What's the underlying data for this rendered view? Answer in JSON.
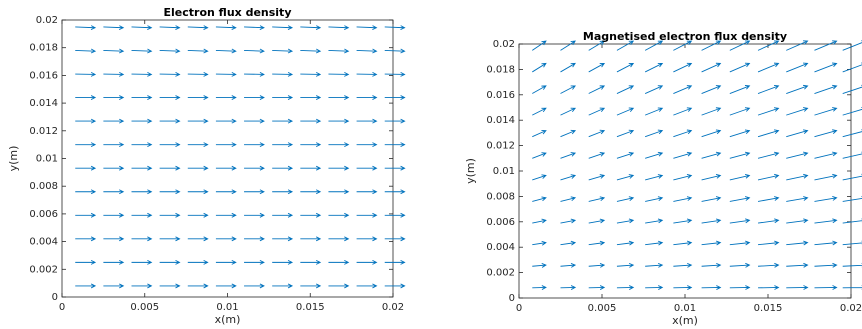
{
  "chart_data": [
    {
      "type": "quiver",
      "title": "Electron flux density",
      "xlabel": "x(m)",
      "ylabel": "y(m)",
      "color": "#0072bd",
      "xlim": [
        0,
        0.02
      ],
      "ylim": [
        0,
        0.02
      ],
      "xticks": [
        0,
        0.005,
        0.01,
        0.015,
        0.02
      ],
      "yticks": [
        0,
        0.002,
        0.004,
        0.006,
        0.008,
        0.01,
        0.012,
        0.014,
        0.016,
        0.018,
        0.02
      ],
      "x": [
        0.0008,
        0.0025,
        0.0042,
        0.0059,
        0.0076,
        0.0093,
        0.011,
        0.0127,
        0.0144,
        0.0161,
        0.0178,
        0.0195
      ],
      "y": [
        0.0008,
        0.0025,
        0.0042,
        0.0059,
        0.0076,
        0.0093,
        0.011,
        0.0127,
        0.0144,
        0.0161,
        0.0178,
        0.0195
      ],
      "u": [
        [
          0.0012,
          0.0012,
          0.0012,
          0.0012,
          0.0012,
          0.0012,
          0.0012,
          0.0012,
          0.0012,
          0.0012,
          0.0012,
          0.0012
        ],
        [
          0.0012,
          0.0012,
          0.0012,
          0.0012,
          0.0012,
          0.0012,
          0.0012,
          0.0012,
          0.0012,
          0.0012,
          0.0012,
          0.0012
        ],
        [
          0.0012,
          0.0012,
          0.0012,
          0.0012,
          0.0012,
          0.0012,
          0.0012,
          0.0012,
          0.0012,
          0.0012,
          0.0012,
          0.0012
        ],
        [
          0.0012,
          0.0012,
          0.0012,
          0.0012,
          0.0012,
          0.0012,
          0.0012,
          0.0012,
          0.0012,
          0.0012,
          0.0012,
          0.0012
        ],
        [
          0.0012,
          0.0012,
          0.0012,
          0.0012,
          0.0012,
          0.0012,
          0.0012,
          0.0012,
          0.0012,
          0.0012,
          0.0012,
          0.0012
        ],
        [
          0.0012,
          0.0012,
          0.0012,
          0.0012,
          0.0012,
          0.0012,
          0.0012,
          0.0012,
          0.0012,
          0.0012,
          0.0012,
          0.0012
        ],
        [
          0.0012,
          0.0012,
          0.0012,
          0.0012,
          0.0012,
          0.0012,
          0.0012,
          0.0012,
          0.0012,
          0.0012,
          0.0012,
          0.0012
        ],
        [
          0.0012,
          0.0012,
          0.0012,
          0.0012,
          0.0012,
          0.0012,
          0.0012,
          0.0012,
          0.0012,
          0.0012,
          0.0012,
          0.0012
        ],
        [
          0.0012,
          0.0012,
          0.0012,
          0.0012,
          0.0012,
          0.0012,
          0.0012,
          0.0012,
          0.0012,
          0.0012,
          0.0012,
          0.0012
        ],
        [
          0.0012,
          0.0012,
          0.0012,
          0.0012,
          0.0012,
          0.0012,
          0.0012,
          0.0012,
          0.0012,
          0.0012,
          0.0012,
          0.0012
        ],
        [
          0.0012,
          0.0012,
          0.0012,
          0.0012,
          0.0012,
          0.0012,
          0.0012,
          0.0012,
          0.0012,
          0.0012,
          0.0012,
          0.0012
        ],
        [
          0.0012,
          0.0012,
          0.0012,
          0.0012,
          0.0012,
          0.0012,
          0.0012,
          0.0012,
          0.0012,
          0.0012,
          0.0012,
          0.0012
        ]
      ],
      "v": [
        [
          0,
          0,
          0,
          0,
          0,
          0,
          0,
          0,
          0,
          0,
          0,
          0
        ],
        [
          0,
          0,
          0,
          0,
          0,
          0,
          0,
          0,
          0,
          0,
          0,
          0
        ],
        [
          0,
          0,
          0,
          0,
          0,
          0,
          0,
          0,
          0,
          0,
          0,
          0
        ],
        [
          0,
          0,
          0,
          0,
          0,
          0,
          0,
          0,
          0,
          0,
          0,
          0
        ],
        [
          0,
          0,
          0,
          0,
          0,
          0,
          0,
          0,
          0,
          0,
          0,
          0
        ],
        [
          0,
          0,
          0,
          0,
          0,
          0,
          0,
          0,
          0,
          0,
          0,
          0
        ],
        [
          0,
          0,
          0,
          0,
          0,
          0,
          0,
          0,
          0,
          0,
          0,
          0
        ],
        [
          0,
          0,
          0,
          0,
          0,
          0,
          0,
          0,
          0,
          0,
          0,
          0
        ],
        [
          0,
          0,
          0,
          0,
          0,
          0,
          0,
          0,
          0,
          0,
          0,
          0
        ],
        [
          -3e-05,
          -3e-05,
          -3e-05,
          -3e-05,
          -3e-05,
          -3e-05,
          -3e-05,
          -3e-05,
          -3e-05,
          -3e-05,
          -3e-05,
          -3e-05
        ],
        [
          -5e-05,
          -5e-05,
          -5e-05,
          -5e-05,
          -5e-05,
          -5e-05,
          -5e-05,
          -5e-05,
          -5e-05,
          -5e-05,
          -5e-05,
          -5e-05
        ],
        [
          -6e-05,
          -6e-05,
          -6e-05,
          -6e-05,
          -6e-05,
          -6e-05,
          -6e-05,
          -6e-05,
          -6e-05,
          -6e-05,
          -6e-05,
          -6e-05
        ]
      ]
    },
    {
      "type": "quiver",
      "title": "Magnetised electron flux density",
      "xlabel": "x(m)",
      "ylabel": "y(m)",
      "color": "#0072bd",
      "xlim": [
        0,
        0.02
      ],
      "ylim": [
        0,
        0.02
      ],
      "xticks": [
        0,
        0.005,
        0.01,
        0.015,
        0.02
      ],
      "yticks": [
        0,
        0.002,
        0.004,
        0.006,
        0.008,
        0.01,
        0.012,
        0.014,
        0.016,
        0.018,
        0.02
      ],
      "x": [
        0.0008,
        0.0025,
        0.0042,
        0.0059,
        0.0076,
        0.0093,
        0.011,
        0.0127,
        0.0144,
        0.0161,
        0.0178,
        0.0195
      ],
      "y": [
        0.0008,
        0.0025,
        0.0042,
        0.0059,
        0.0076,
        0.0093,
        0.011,
        0.0127,
        0.0144,
        0.0161,
        0.0178,
        0.0195
      ],
      "u": [
        [
          0.00082,
          0.00088,
          0.00093,
          0.00098,
          0.00103,
          0.00108,
          0.00113,
          0.00118,
          0.00123,
          0.00128,
          0.00133,
          0.00139
        ],
        [
          0.00082,
          0.00088,
          0.00093,
          0.00098,
          0.00103,
          0.00108,
          0.00113,
          0.00118,
          0.00123,
          0.00128,
          0.00133,
          0.00139
        ],
        [
          0.00082,
          0.00088,
          0.00093,
          0.00098,
          0.00103,
          0.00108,
          0.00113,
          0.00118,
          0.00123,
          0.00128,
          0.00133,
          0.00139
        ],
        [
          0.00082,
          0.00088,
          0.00093,
          0.00098,
          0.00103,
          0.00108,
          0.00113,
          0.00118,
          0.00123,
          0.00128,
          0.00133,
          0.00139
        ],
        [
          0.00082,
          0.00088,
          0.00093,
          0.00098,
          0.00103,
          0.00108,
          0.00113,
          0.00118,
          0.00123,
          0.00128,
          0.00133,
          0.00139
        ],
        [
          0.00082,
          0.00088,
          0.00093,
          0.00098,
          0.00103,
          0.00108,
          0.00113,
          0.00118,
          0.00123,
          0.00128,
          0.00133,
          0.00139
        ],
        [
          0.00082,
          0.00088,
          0.00093,
          0.00098,
          0.00103,
          0.00108,
          0.00113,
          0.00118,
          0.00123,
          0.00128,
          0.00133,
          0.00139
        ],
        [
          0.00082,
          0.00088,
          0.00093,
          0.00098,
          0.00103,
          0.00108,
          0.00113,
          0.00118,
          0.00123,
          0.00128,
          0.00133,
          0.00139
        ],
        [
          0.00082,
          0.00088,
          0.00093,
          0.00098,
          0.00103,
          0.00108,
          0.00113,
          0.00118,
          0.00123,
          0.00128,
          0.00133,
          0.00139
        ],
        [
          0.00082,
          0.00088,
          0.00093,
          0.00098,
          0.00103,
          0.00108,
          0.00113,
          0.00118,
          0.00123,
          0.00128,
          0.00133,
          0.00139
        ],
        [
          0.00082,
          0.00088,
          0.00093,
          0.00098,
          0.00103,
          0.00108,
          0.00113,
          0.00118,
          0.00123,
          0.00128,
          0.00133,
          0.00139
        ],
        [
          0.00082,
          0.00088,
          0.00093,
          0.00098,
          0.00103,
          0.00108,
          0.00113,
          0.00118,
          0.00123,
          0.00128,
          0.00133,
          0.00139
        ]
      ],
      "v": [
        [
          3e-05,
          3e-05,
          3e-05,
          3e-05,
          3e-05,
          3e-05,
          3e-05,
          3e-05,
          3e-05,
          3e-05,
          3e-05,
          3e-05
        ],
        [
          9e-05,
          9e-05,
          9e-05,
          9e-05,
          9e-05,
          9e-05,
          9e-05,
          9e-05,
          9e-05,
          9e-05,
          9e-05,
          9e-05
        ],
        [
          0.00016,
          0.00016,
          0.00016,
          0.00016,
          0.00016,
          0.00016,
          0.00016,
          0.00016,
          0.00016,
          0.00016,
          0.00016,
          0.00016
        ],
        [
          0.00022,
          0.00022,
          0.00022,
          0.00022,
          0.00022,
          0.00022,
          0.00022,
          0.00022,
          0.00022,
          0.00022,
          0.00022,
          0.00022
        ],
        [
          0.00029,
          0.00029,
          0.00029,
          0.00029,
          0.00029,
          0.00029,
          0.00029,
          0.00029,
          0.00029,
          0.00029,
          0.00029,
          0.00029
        ],
        [
          0.00035,
          0.00035,
          0.00035,
          0.00035,
          0.00035,
          0.00035,
          0.00035,
          0.00035,
          0.00035,
          0.00035,
          0.00035,
          0.00035
        ],
        [
          0.00041,
          0.00041,
          0.00041,
          0.00041,
          0.00041,
          0.00041,
          0.00041,
          0.00041,
          0.00041,
          0.00041,
          0.00041,
          0.00041
        ],
        [
          0.00048,
          0.00048,
          0.00048,
          0.00048,
          0.00048,
          0.00048,
          0.00048,
          0.00048,
          0.00048,
          0.00048,
          0.00048,
          0.00048
        ],
        [
          0.00054,
          0.00054,
          0.00054,
          0.00054,
          0.00054,
          0.00054,
          0.00054,
          0.00054,
          0.00054,
          0.00054,
          0.00054,
          0.00054
        ],
        [
          0.0006,
          0.0006,
          0.0006,
          0.0006,
          0.0006,
          0.0006,
          0.0006,
          0.0006,
          0.0006,
          0.0006,
          0.0006,
          0.0006
        ],
        [
          0.00067,
          0.00067,
          0.00067,
          0.00067,
          0.00067,
          0.00067,
          0.00067,
          0.00067,
          0.00067,
          0.00067,
          0.00067,
          0.00067
        ],
        [
          0.00073,
          0.00073,
          0.00073,
          0.00073,
          0.00073,
          0.00073,
          0.00073,
          0.00073,
          0.00073,
          0.00073,
          0.00073,
          0.00073
        ]
      ]
    }
  ]
}
